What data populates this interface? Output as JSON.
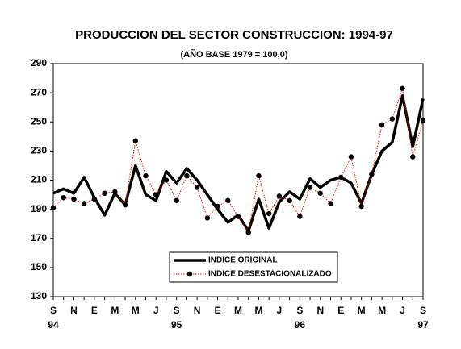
{
  "chart_data": {
    "type": "line",
    "title": "PRODUCCION DEL SECTOR CONSTRUCCION: 1994-97",
    "subtitle": "(AÑO BASE 1979 = 100,0)",
    "categories": [
      "S",
      null,
      "N",
      null,
      "E",
      null,
      "M",
      null,
      "M",
      null,
      "J",
      null,
      "S",
      null,
      "N",
      null,
      "E",
      null,
      "M",
      null,
      "M",
      null,
      "J",
      null,
      "S",
      null,
      "N",
      null,
      "E",
      null,
      "M",
      null,
      "M",
      null,
      "J",
      null,
      "S"
    ],
    "category_years": [
      "94",
      null,
      null,
      null,
      null,
      null,
      null,
      null,
      null,
      null,
      null,
      null,
      "95",
      null,
      null,
      null,
      null,
      null,
      null,
      null,
      null,
      null,
      null,
      null,
      "96",
      null,
      null,
      null,
      null,
      null,
      null,
      null,
      null,
      null,
      null,
      null,
      "97"
    ],
    "series": [
      {
        "name": "INDICE ORIGINAL",
        "color": "#000000",
        "style": "solid",
        "values": [
          201,
          204,
          201,
          212,
          198,
          186,
          201,
          193,
          220,
          200,
          196,
          216,
          208,
          218,
          210,
          200,
          190,
          181,
          186,
          175,
          197,
          177,
          195,
          202,
          197,
          211,
          205,
          210,
          212,
          208,
          194,
          214,
          230,
          236,
          268,
          233,
          266
        ]
      },
      {
        "name": "INDICE DESESTACIONALIZADO",
        "color": "#ff0000",
        "style": "dotted",
        "values": [
          191,
          198,
          197,
          194,
          197,
          201,
          202,
          193,
          237,
          213,
          200,
          210,
          196,
          213,
          205,
          184,
          192,
          196,
          185,
          174,
          213,
          187,
          199,
          196,
          185,
          205,
          201,
          194,
          212,
          226,
          192,
          214,
          248,
          252,
          273,
          226,
          251
        ]
      }
    ],
    "ylim": [
      130,
      290
    ],
    "yticks": [
      130,
      150,
      170,
      190,
      210,
      230,
      250,
      270,
      290
    ],
    "grid": false,
    "legend": "bottom"
  }
}
